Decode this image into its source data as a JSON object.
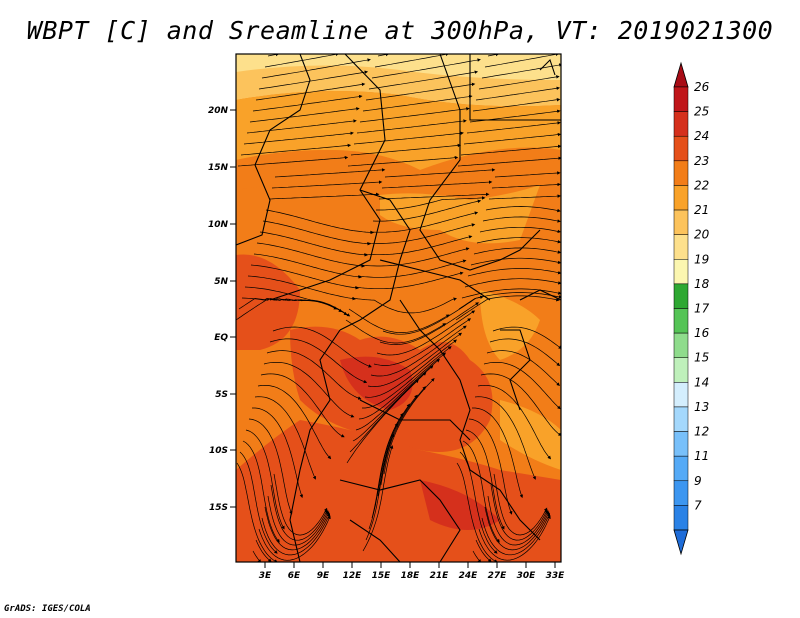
{
  "title": "WBPT [C] and Sreamline at 300hPa, VT: 2019021300",
  "credit": "GrADS: IGES/COLA",
  "map": {
    "lat_labels": [
      "20N",
      "15N",
      "10N",
      "5N",
      "EQ",
      "5S",
      "10S",
      "15S"
    ],
    "lon_labels": [
      "3E",
      "6E",
      "9E",
      "12E",
      "15E",
      "18E",
      "21E",
      "24E",
      "27E",
      "30E",
      "33E"
    ]
  },
  "colorbar": {
    "labels": [
      "7",
      "9",
      "11",
      "12",
      "13",
      "14",
      "15",
      "16",
      "17",
      "18",
      "19",
      "20",
      "21",
      "22",
      "23",
      "24",
      "25",
      "26"
    ],
    "colors": [
      "#1e6cd8",
      "#2a82e6",
      "#3c96f0",
      "#55aaf6",
      "#78c0fa",
      "#a4d8fc",
      "#d4eefd",
      "#bff0bb",
      "#8fdc8c",
      "#55c456",
      "#2ea832",
      "#fbf6b0",
      "#fde08c",
      "#fcc35c",
      "#f9a229",
      "#f27d18",
      "#e5501a",
      "#d5301c",
      "#c0161a",
      "#a80c16"
    ]
  }
}
